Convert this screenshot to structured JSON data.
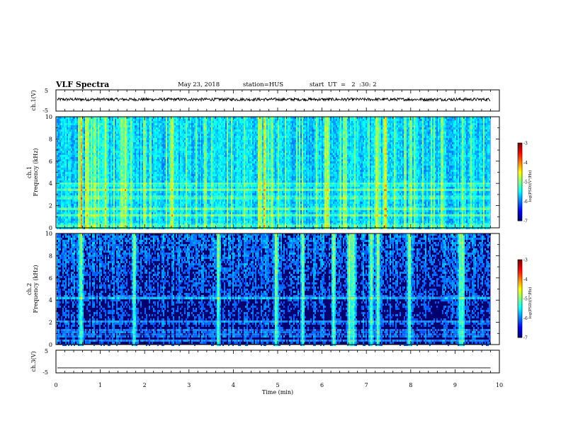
{
  "header": {
    "title": "VLF Spectra",
    "date": "May 23, 2018",
    "station": "station=HUS",
    "start": "start  UT  =   2  :30: 2"
  },
  "chart_data": [
    {
      "type": "line",
      "name": "ch1-waveform",
      "ylabel": "ch.1(V)",
      "ylim": [
        -5,
        5
      ],
      "yticks": [
        "5",
        "-5"
      ],
      "xlim": [
        0,
        10
      ],
      "trace_level": 0.5,
      "trace_extent": [
        0,
        9.8
      ]
    },
    {
      "type": "heatmap",
      "name": "ch1-spectrogram",
      "ylabel": "ch.1\nFrequency  (kHz)",
      "ylabel_line1": "ch.1",
      "ylabel_line2": "Frequency  (kHz)",
      "ylim": [
        0,
        10
      ],
      "yticks": [
        "0",
        "2",
        "4",
        "6",
        "8",
        "10"
      ],
      "xlim": [
        0,
        10
      ],
      "data_extent": [
        0,
        9.8
      ],
      "colorbar": {
        "label": "log(PSD)(V²/Hz)",
        "range": [
          -7,
          -3
        ],
        "ticks": [
          "-3",
          "-4",
          "-5",
          "-6",
          "-7"
        ]
      },
      "bright_bands_khz": [
        0.3,
        1.2,
        1.8,
        2.8,
        3.5,
        4.0
      ],
      "bright_streaks_min": [
        0.55,
        0.7,
        1.1,
        1.55,
        2.6,
        4.6,
        4.7,
        6.1,
        7.25,
        7.4
      ]
    },
    {
      "type": "heatmap",
      "name": "ch2-spectrogram",
      "ylabel_line1": "ch.2",
      "ylabel_line2": "Frequency  (kHz)",
      "ylim": [
        0,
        10
      ],
      "yticks": [
        "0",
        "2",
        "4",
        "6",
        "8",
        "10"
      ],
      "xlim": [
        0,
        10
      ],
      "data_extent": [
        0,
        9.8
      ],
      "colorbar": {
        "label": "log(PSD)(V²/Hz)",
        "range": [
          -7,
          -3
        ],
        "ticks": [
          "-3",
          "-4",
          "-5",
          "-6",
          "-7"
        ]
      },
      "bright_bands_khz": [
        0.4,
        0.9,
        1.3,
        2.1,
        4.3
      ],
      "bright_streaks_min": [
        0.55,
        1.75,
        3.65,
        4.95,
        5.55,
        6.25,
        6.6,
        6.65,
        6.7,
        7.1,
        7.25,
        7.95,
        9.1,
        9.15
      ]
    },
    {
      "type": "line",
      "name": "ch3-waveform",
      "ylabel": "ch.3(V)",
      "ylim": [
        -5,
        5
      ],
      "yticks": [
        "5",
        "-5"
      ],
      "xlim": [
        0,
        10
      ],
      "xticks": [
        "0",
        "1",
        "2",
        "3",
        "4",
        "5",
        "6",
        "7",
        "8",
        "9",
        "10"
      ],
      "xlabel": "Time  (min)",
      "trace_level": -2.8,
      "trace_extent": [
        0,
        9.8
      ]
    }
  ]
}
